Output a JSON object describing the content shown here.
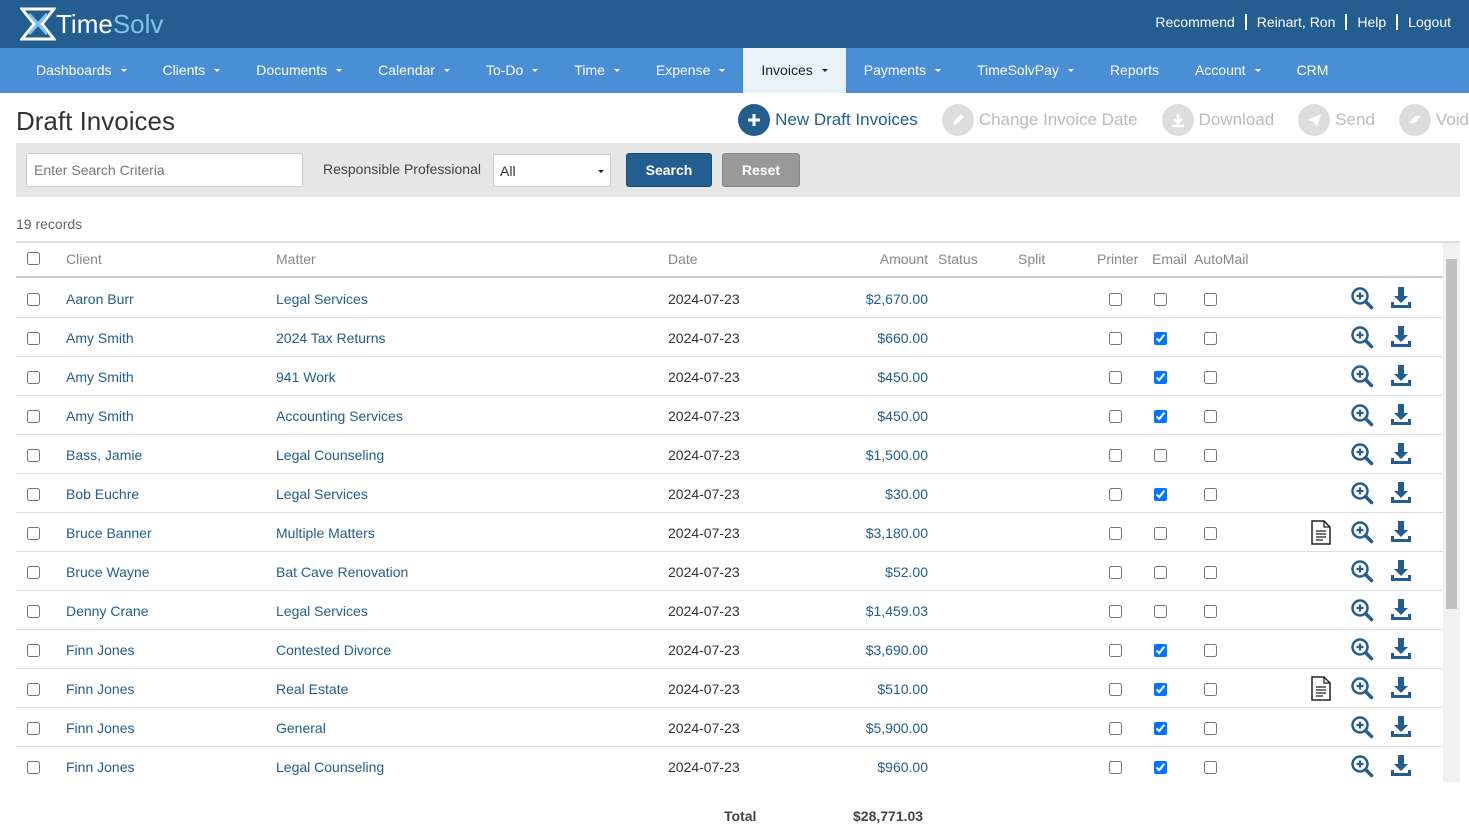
{
  "header": {
    "logo_time": "Time",
    "logo_solv": "Solv",
    "links": [
      "Recommend",
      "Reinart, Ron",
      "Help",
      "Logout"
    ]
  },
  "nav": [
    {
      "label": "Dashboards",
      "caret": true
    },
    {
      "label": "Clients",
      "caret": true
    },
    {
      "label": "Documents",
      "caret": true
    },
    {
      "label": "Calendar",
      "caret": true
    },
    {
      "label": "To-Do",
      "caret": true
    },
    {
      "label": "Time",
      "caret": true
    },
    {
      "label": "Expense",
      "caret": true
    },
    {
      "label": "Invoices",
      "caret": true,
      "active": true
    },
    {
      "label": "Payments",
      "caret": true
    },
    {
      "label": "TimeSolvPay",
      "caret": true
    },
    {
      "label": "Reports",
      "caret": false
    },
    {
      "label": "Account",
      "caret": true
    },
    {
      "label": "CRM",
      "caret": false
    }
  ],
  "page": {
    "title": "Draft Invoices",
    "actions": [
      {
        "label": "New Draft Invoices",
        "enabled": true
      },
      {
        "label": "Change Invoice Date",
        "enabled": false
      },
      {
        "label": "Download",
        "enabled": false
      },
      {
        "label": "Send",
        "enabled": false
      },
      {
        "label": "Void",
        "enabled": false
      }
    ]
  },
  "search": {
    "placeholder": "Enter Search Criteria",
    "professional_label": "Responsible Professional",
    "professional_value": "All",
    "search_button": "Search",
    "reset_button": "Reset"
  },
  "table": {
    "records": "19 records",
    "columns": [
      "Client",
      "Matter",
      "Date",
      "Amount",
      "Status",
      "Split",
      "Printer",
      "Email",
      "AutoMail"
    ],
    "rows": [
      {
        "client": "Aaron Burr",
        "matter": "Legal Services",
        "date": "2024-07-23",
        "amount": "$2,670.00",
        "printer": false,
        "email": false,
        "automail": false,
        "document": false
      },
      {
        "client": "Amy Smith",
        "matter": "2024 Tax Returns",
        "date": "2024-07-23",
        "amount": "$660.00",
        "printer": false,
        "email": true,
        "automail": false,
        "document": false
      },
      {
        "client": "Amy Smith",
        "matter": "941 Work",
        "date": "2024-07-23",
        "amount": "$450.00",
        "printer": false,
        "email": true,
        "automail": false,
        "document": false
      },
      {
        "client": "Amy Smith",
        "matter": "Accounting Services",
        "date": "2024-07-23",
        "amount": "$450.00",
        "printer": false,
        "email": true,
        "automail": false,
        "document": false
      },
      {
        "client": "Bass, Jamie",
        "matter": "Legal Counseling",
        "date": "2024-07-23",
        "amount": "$1,500.00",
        "printer": false,
        "email": false,
        "automail": false,
        "document": false
      },
      {
        "client": "Bob Euchre",
        "matter": "Legal Services",
        "date": "2024-07-23",
        "amount": "$30.00",
        "printer": false,
        "email": true,
        "automail": false,
        "document": false
      },
      {
        "client": "Bruce Banner",
        "matter": "Multiple Matters",
        "date": "2024-07-23",
        "amount": "$3,180.00",
        "printer": false,
        "email": false,
        "automail": false,
        "document": true
      },
      {
        "client": "Bruce Wayne",
        "matter": "Bat Cave Renovation",
        "date": "2024-07-23",
        "amount": "$52.00",
        "printer": false,
        "email": false,
        "automail": false,
        "document": false
      },
      {
        "client": "Denny Crane",
        "matter": "Legal Services",
        "date": "2024-07-23",
        "amount": "$1,459.03",
        "printer": false,
        "email": false,
        "automail": false,
        "document": false
      },
      {
        "client": "Finn Jones",
        "matter": "Contested Divorce",
        "date": "2024-07-23",
        "amount": "$3,690.00",
        "printer": false,
        "email": true,
        "automail": false,
        "document": false
      },
      {
        "client": "Finn Jones",
        "matter": "Real Estate",
        "date": "2024-07-23",
        "amount": "$510.00",
        "printer": false,
        "email": true,
        "automail": false,
        "document": true
      },
      {
        "client": "Finn Jones",
        "matter": "General",
        "date": "2024-07-23",
        "amount": "$5,900.00",
        "printer": false,
        "email": true,
        "automail": false,
        "document": false
      },
      {
        "client": "Finn Jones",
        "matter": "Legal Counseling",
        "date": "2024-07-23",
        "amount": "$960.00",
        "printer": false,
        "email": true,
        "automail": false,
        "document": false
      }
    ],
    "total_label": "Total",
    "total_value": "$28,771.03"
  }
}
